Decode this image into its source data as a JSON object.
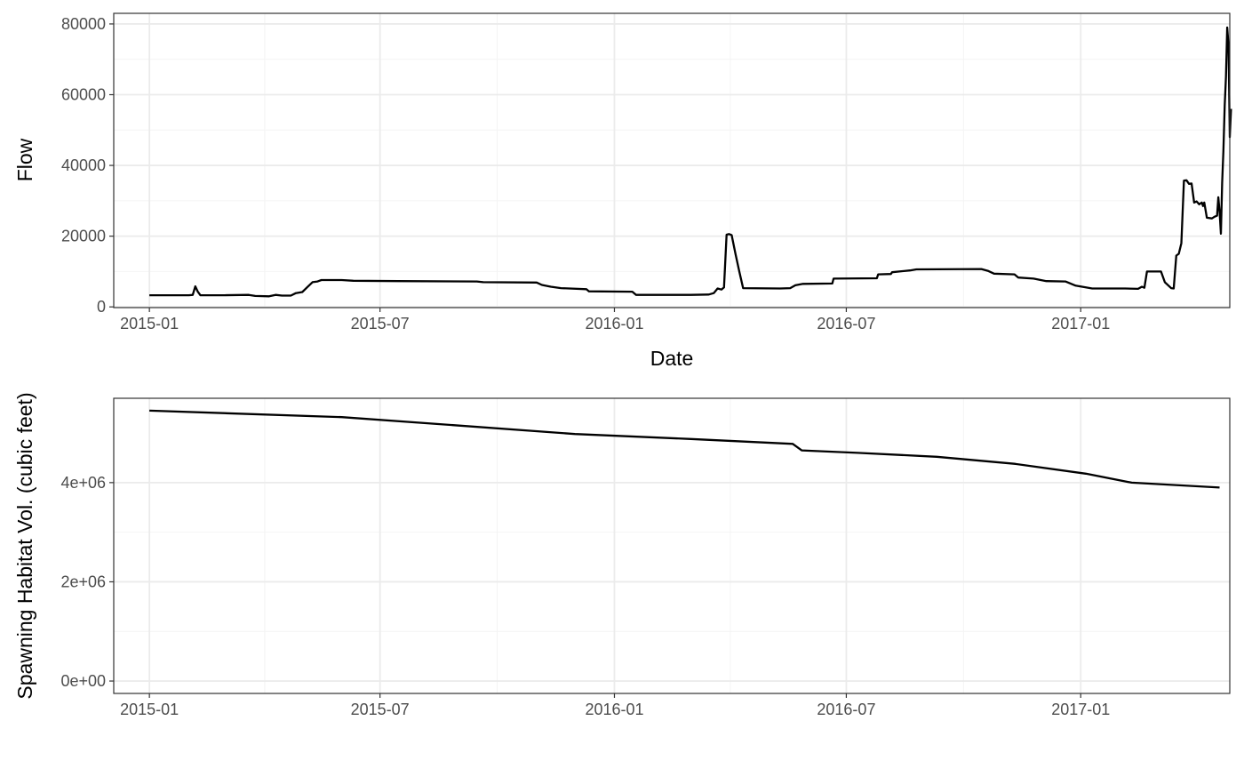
{
  "chart_data": [
    {
      "type": "line",
      "title": "",
      "xlabel": "Date",
      "ylabel": "Flow",
      "x_ticks": [
        "2015-01",
        "2015-07",
        "2016-01",
        "2016-07",
        "2017-01"
      ],
      "y_ticks": [
        "0",
        "20000",
        "40000",
        "60000",
        "80000"
      ],
      "xlim": [
        "2014-12-04",
        "2017-04-28"
      ],
      "ylim": [
        -200,
        83000
      ],
      "grid": true,
      "series": [
        {
          "color": "#000000",
          "points": [
            [
              "2015-01-01",
              3300
            ],
            [
              "2015-02-01",
              3300
            ],
            [
              "2015-02-04",
              3400
            ],
            [
              "2015-02-06",
              5800
            ],
            [
              "2015-02-08",
              4300
            ],
            [
              "2015-02-10",
              3300
            ],
            [
              "2015-03-01",
              3300
            ],
            [
              "2015-03-20",
              3400
            ],
            [
              "2015-03-25",
              3100
            ],
            [
              "2015-04-05",
              3000
            ],
            [
              "2015-04-10",
              3400
            ],
            [
              "2015-04-15",
              3200
            ],
            [
              "2015-04-22",
              3200
            ],
            [
              "2015-04-26",
              3900
            ],
            [
              "2015-05-01",
              4200
            ],
            [
              "2015-05-05",
              5600
            ],
            [
              "2015-05-09",
              7000
            ],
            [
              "2015-05-13",
              7200
            ],
            [
              "2015-05-16",
              7600
            ],
            [
              "2015-06-01",
              7600
            ],
            [
              "2015-06-10",
              7400
            ],
            [
              "2015-07-15",
              7300
            ],
            [
              "2015-09-15",
              7200
            ],
            [
              "2015-09-20",
              7000
            ],
            [
              "2015-11-01",
              6900
            ],
            [
              "2015-11-05",
              6200
            ],
            [
              "2015-11-12",
              5700
            ],
            [
              "2015-11-20",
              5300
            ],
            [
              "2015-12-10",
              5000
            ],
            [
              "2015-12-12",
              4400
            ],
            [
              "2016-01-15",
              4300
            ],
            [
              "2016-01-18",
              3400
            ],
            [
              "2016-02-01",
              3400
            ],
            [
              "2016-03-01",
              3400
            ],
            [
              "2016-03-15",
              3500
            ],
            [
              "2016-03-19",
              3900
            ],
            [
              "2016-03-22",
              5200
            ],
            [
              "2016-03-25",
              4900
            ],
            [
              "2016-03-27",
              5500
            ],
            [
              "2016-03-29",
              20400
            ],
            [
              "2016-03-31",
              20600
            ],
            [
              "2016-04-02",
              20300
            ],
            [
              "2016-04-05",
              15000
            ],
            [
              "2016-04-08",
              10000
            ],
            [
              "2016-04-11",
              5300
            ],
            [
              "2016-05-10",
              5200
            ],
            [
              "2016-05-18",
              5300
            ],
            [
              "2016-05-22",
              6100
            ],
            [
              "2016-05-28",
              6500
            ],
            [
              "2016-06-20",
              6600
            ],
            [
              "2016-06-21",
              8000
            ],
            [
              "2016-07-25",
              8100
            ],
            [
              "2016-07-26",
              9200
            ],
            [
              "2016-08-05",
              9300
            ],
            [
              "2016-08-06",
              9800
            ],
            [
              "2016-08-20",
              10300
            ],
            [
              "2016-08-25",
              10600
            ],
            [
              "2016-10-15",
              10700
            ],
            [
              "2016-10-20",
              10200
            ],
            [
              "2016-10-25",
              9400
            ],
            [
              "2016-11-10",
              9200
            ],
            [
              "2016-11-13",
              8300
            ],
            [
              "2016-11-25",
              8000
            ],
            [
              "2016-12-05",
              7300
            ],
            [
              "2016-12-20",
              7200
            ],
            [
              "2016-12-28",
              6000
            ],
            [
              "2017-01-10",
              5200
            ],
            [
              "2017-02-05",
              5200
            ],
            [
              "2017-02-15",
              5100
            ],
            [
              "2017-02-18",
              5700
            ],
            [
              "2017-02-20",
              5400
            ],
            [
              "2017-02-22",
              10000
            ],
            [
              "2017-03-05",
              10000
            ],
            [
              "2017-03-08",
              7000
            ],
            [
              "2017-03-13",
              5300
            ],
            [
              "2017-03-15",
              5200
            ],
            [
              "2017-03-17",
              14500
            ],
            [
              "2017-03-19",
              15000
            ],
            [
              "2017-03-21",
              18000
            ],
            [
              "2017-03-23",
              35700
            ],
            [
              "2017-03-25",
              35800
            ],
            [
              "2017-03-27",
              34800
            ],
            [
              "2017-03-29",
              34900
            ],
            [
              "2017-03-31",
              29500
            ],
            [
              "2017-04-02",
              29800
            ],
            [
              "2017-04-04",
              29000
            ],
            [
              "2017-04-06",
              29500
            ],
            [
              "2017-04-07",
              28500
            ],
            [
              "2017-04-08",
              29500
            ],
            [
              "2017-04-10",
              25200
            ],
            [
              "2017-04-14",
              25000
            ],
            [
              "2017-04-16",
              25500
            ],
            [
              "2017-04-18",
              25800
            ],
            [
              "2017-04-19",
              31000
            ],
            [
              "2017-04-20",
              27000
            ],
            [
              "2017-04-21",
              20700
            ],
            [
              "2017-04-22",
              35000
            ],
            [
              "2017-04-23",
              44000
            ],
            [
              "2017-04-24",
              57000
            ],
            [
              "2017-04-25",
              65000
            ],
            [
              "2017-04-26",
              79000
            ],
            [
              "2017-04-27",
              74000
            ],
            [
              "2017-04-28",
              48000
            ],
            [
              "2017-04-29",
              56000
            ]
          ]
        }
      ]
    },
    {
      "type": "line",
      "title": "",
      "xlabel": "",
      "ylabel": "Spawning Habitat Vol. (cubic feet)",
      "x_ticks": [
        "2015-01",
        "2015-07",
        "2016-01",
        "2016-07",
        "2017-01"
      ],
      "y_ticks": [
        "0e+00",
        "2e+06",
        "4e+06"
      ],
      "xlim": [
        "2014-12-04",
        "2017-04-28"
      ],
      "ylim": [
        -250000,
        5700000
      ],
      "grid": true,
      "series": [
        {
          "color": "#000000",
          "points": [
            [
              "2015-01-01",
              5450000
            ],
            [
              "2015-06-01",
              5320000
            ],
            [
              "2015-09-01",
              5150000
            ],
            [
              "2015-12-01",
              4980000
            ],
            [
              "2016-03-01",
              4880000
            ],
            [
              "2016-05-20",
              4780000
            ],
            [
              "2016-05-27",
              4650000
            ],
            [
              "2016-07-10",
              4600000
            ],
            [
              "2016-09-10",
              4520000
            ],
            [
              "2016-11-10",
              4380000
            ],
            [
              "2017-01-05",
              4180000
            ],
            [
              "2017-02-10",
              4000000
            ],
            [
              "2017-04-20",
              3900000
            ]
          ]
        }
      ]
    }
  ]
}
